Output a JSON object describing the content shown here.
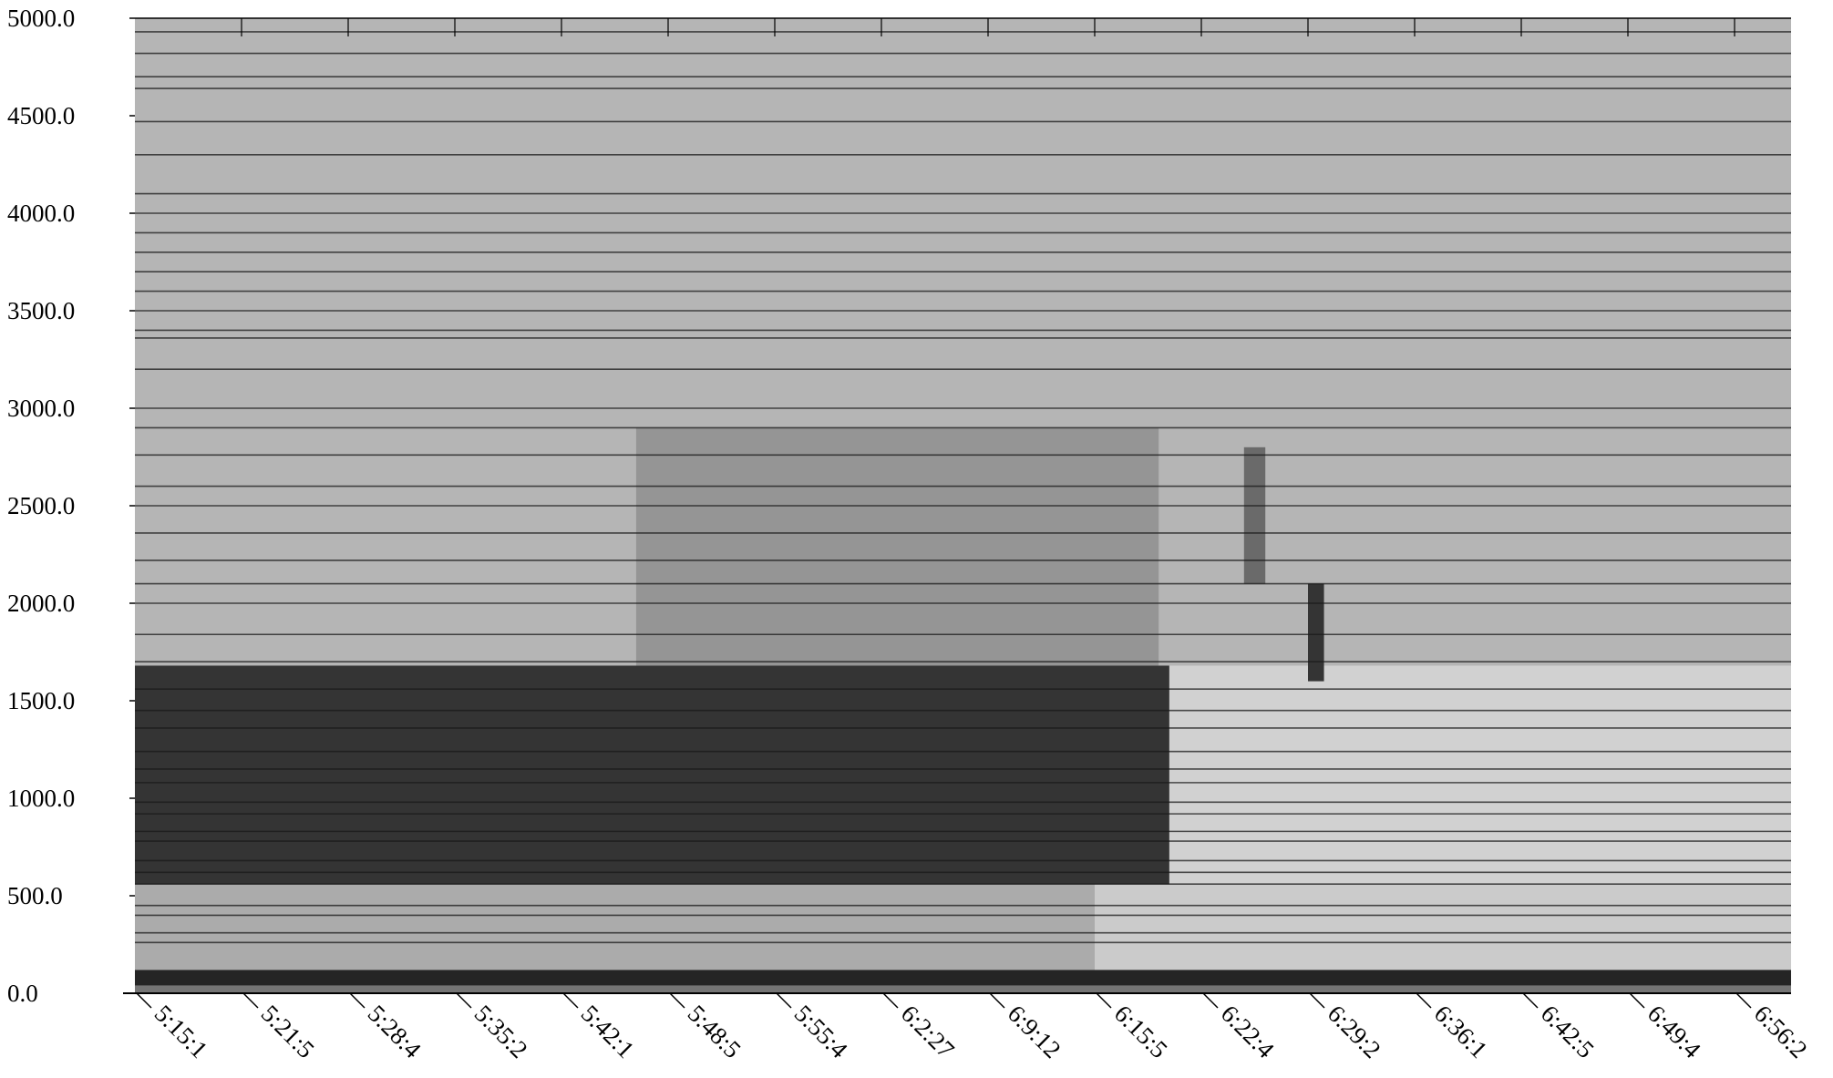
{
  "chart_data": {
    "type": "heatmap",
    "title": "",
    "xlabel": "",
    "ylabel": "",
    "colormap": "grayscale (dark = high intensity)",
    "ylim": [
      0.0,
      5000.0
    ],
    "y_ticks": [
      "0.0",
      "500.0",
      "1000.0",
      "1500.0",
      "2000.0",
      "2500.0",
      "3000.0",
      "3500.0",
      "4000.0",
      "4500.0",
      "5000.0"
    ],
    "x_ticks": [
      "5:15:1",
      "5:21:5",
      "5:28:4",
      "5:35:2",
      "5:42:1",
      "5:48:5",
      "5:55:4",
      "6:2:27",
      "6:9:12",
      "6:15:5",
      "6:22:4",
      "6:29:2",
      "6:36:1",
      "6:42:5",
      "6:49:4",
      "6:56:2"
    ],
    "background_intensity": 0.25,
    "bands": [
      {
        "y_from": 0,
        "y_to": 40,
        "x_from": 0,
        "x_to": 15.6,
        "intensity": 0.55
      },
      {
        "y_from": 40,
        "y_to": 120,
        "x_from": 0,
        "x_to": 15.6,
        "intensity": 0.92
      },
      {
        "y_from": 120,
        "y_to": 560,
        "x_from": 0,
        "x_to": 9.0,
        "intensity": 0.3
      },
      {
        "y_from": 120,
        "y_to": 560,
        "x_from": 9.0,
        "x_to": 15.6,
        "intensity": 0.15
      },
      {
        "y_from": 560,
        "y_to": 1680,
        "x_from": 0,
        "x_to": 9.7,
        "intensity": 0.85
      },
      {
        "y_from": 560,
        "y_to": 1680,
        "x_from": 9.7,
        "x_to": 15.6,
        "intensity": 0.12
      },
      {
        "y_from": 1680,
        "y_to": 2900,
        "x_from": 4.7,
        "x_to": 9.6,
        "intensity": 0.4
      },
      {
        "y_from": 1600,
        "y_to": 2100,
        "x_from": 11.0,
        "x_to": 11.15,
        "intensity": 0.85
      },
      {
        "y_from": 2100,
        "y_to": 2800,
        "x_from": 10.4,
        "x_to": 10.6,
        "intensity": 0.6
      }
    ],
    "horizontal_lines": [
      4930,
      4820,
      4700,
      4640,
      4470,
      4300,
      4100,
      4000,
      3900,
      3800,
      3700,
      3600,
      3500,
      3400,
      3360,
      3200,
      3000,
      2900,
      2760,
      2600,
      2500,
      2360,
      2220,
      2100,
      2000,
      1840,
      1700,
      1560,
      1450,
      1360,
      1240,
      1150,
      1080,
      980,
      920,
      830,
      780,
      680,
      620,
      560,
      450,
      400,
      310,
      260
    ]
  }
}
